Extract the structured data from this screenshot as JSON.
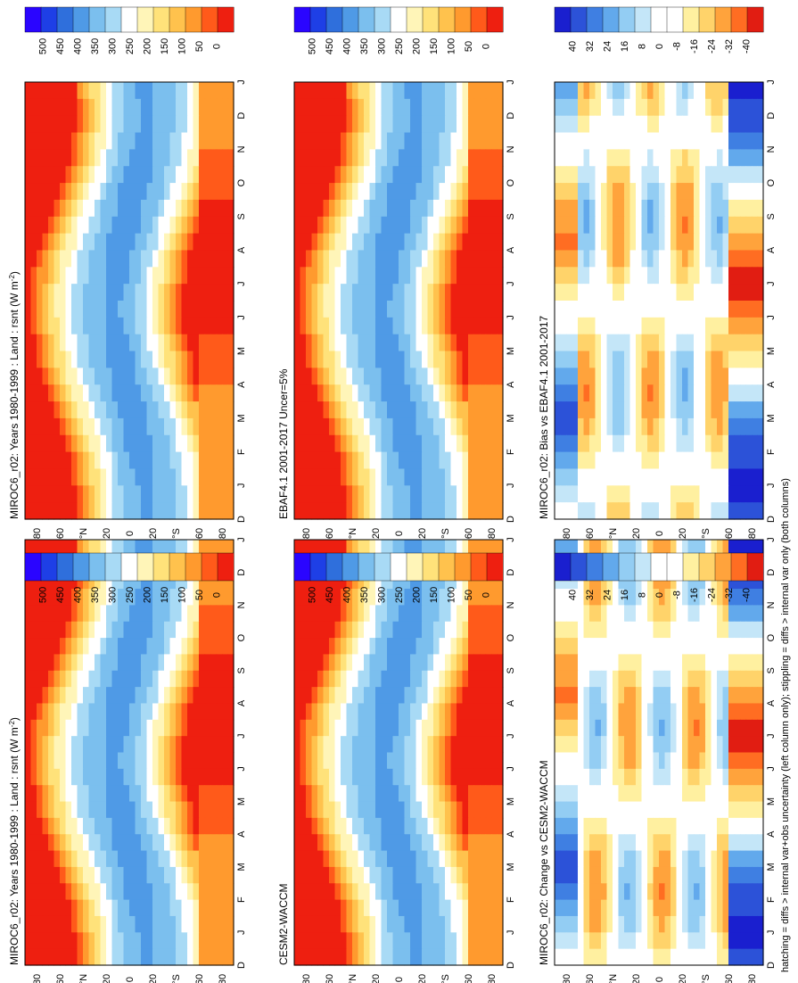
{
  "figure": {
    "footnote": "hatching = diffs > internal var+obs uncertainty (left column only); stippling = diffs > internal var only (both columns)",
    "month_labels": [
      "D",
      "J",
      "F",
      "M",
      "A",
      "M",
      "J",
      "J",
      "A",
      "S",
      "O",
      "N",
      "D",
      "J"
    ],
    "lat_labels": [
      "80",
      "60",
      "°N",
      "20",
      "0",
      "20",
      "°S",
      "60",
      "80"
    ]
  },
  "chart_data": [
    {
      "type": "heatmap",
      "title": "MIROC6_r02: Years 1980-1999 : Land : rsnt (W m",
      "title_units_sup": "-2",
      "title_tail": ")",
      "x": "month",
      "y": "latitude",
      "ylim": [
        -90,
        90
      ],
      "field": "rsnt",
      "colorbar": {
        "labels": [
          "500",
          "450",
          "400",
          "350",
          "300",
          "250",
          "200",
          "150",
          "100",
          "50",
          "0"
        ],
        "range": [
          0,
          500
        ]
      },
      "hatching": true,
      "stippling": true
    },
    {
      "type": "heatmap",
      "title": "MIROC6_r02: Years 1980-1999 : Land : rsnt (W m",
      "title_units_sup": "-2",
      "title_tail": ")",
      "x": "month",
      "y": "latitude",
      "ylim": [
        -90,
        90
      ],
      "field": "rsnt",
      "colorbar": {
        "labels": [
          "500",
          "450",
          "400",
          "350",
          "300",
          "250",
          "200",
          "150",
          "100",
          "50",
          "0"
        ],
        "range": [
          0,
          500
        ]
      },
      "hatching": false,
      "stippling": true
    },
    {
      "type": "heatmap",
      "title": "EBAF4.1 2001-2017 Uncer=5%",
      "x": "month",
      "y": "latitude",
      "ylim": [
        -90,
        90
      ],
      "field": "rsnt",
      "colorbar": {
        "labels": [
          "500",
          "450",
          "400",
          "350",
          "300",
          "250",
          "200",
          "150",
          "100",
          "50",
          "0"
        ],
        "range": [
          0,
          500
        ]
      },
      "hatching": true,
      "stippling": true
    },
    {
      "type": "heatmap",
      "title": "CESM2-WACCM",
      "x": "month",
      "y": "latitude",
      "ylim": [
        -90,
        90
      ],
      "field": "rsnt",
      "colorbar": {
        "labels": [
          "500",
          "450",
          "400",
          "350",
          "300",
          "250",
          "200",
          "150",
          "100",
          "50",
          "0"
        ],
        "range": [
          0,
          500
        ]
      },
      "hatching": false,
      "stippling": true
    },
    {
      "type": "heatmap",
      "title": "MIROC6_r02: Bias vs EBAF4.1 2001-2017",
      "x": "month",
      "y": "latitude",
      "ylim": [
        -90,
        90
      ],
      "field": "difference",
      "colorbar": {
        "labels": [
          "40",
          "32",
          "24",
          "16",
          "8",
          "0",
          "-8",
          "-16",
          "-24",
          "-32",
          "-40"
        ],
        "range": [
          -40,
          40
        ]
      },
      "hatching": true,
      "stippling": true
    },
    {
      "type": "heatmap",
      "title": "MIROC6_r02: Change vs CESM2-WACCM",
      "x": "month",
      "y": "latitude",
      "ylim": [
        -90,
        90
      ],
      "field": "difference",
      "colorbar": {
        "labels": [
          "40",
          "32",
          "24",
          "16",
          "8",
          "0",
          "-8",
          "-16",
          "-24",
          "-32",
          "-40"
        ],
        "range": [
          -40,
          40
        ]
      },
      "hatching": false,
      "stippling": true
    }
  ]
}
